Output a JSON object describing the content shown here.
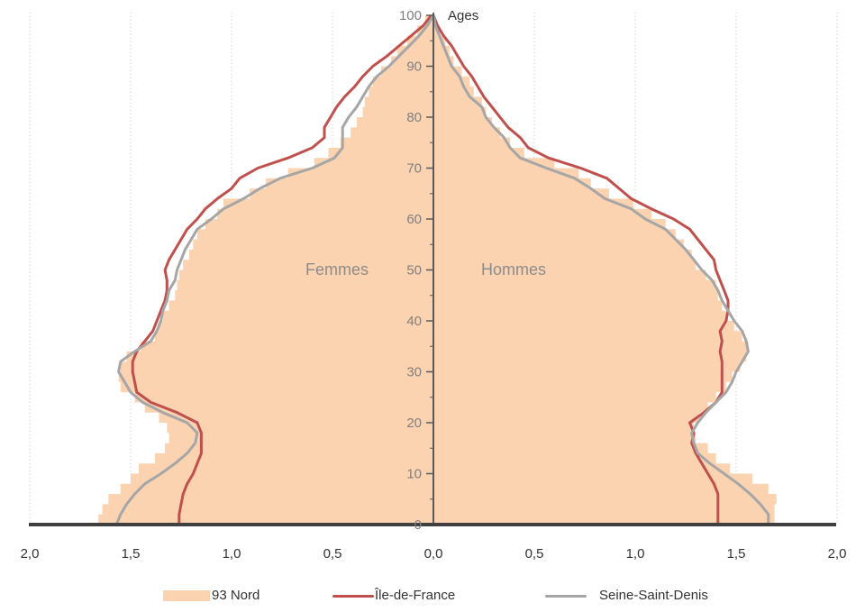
{
  "chart_data": {
    "type": "population_pyramid",
    "title": "",
    "ylabel": "Ages",
    "y_ticks": [
      0,
      10,
      20,
      30,
      40,
      50,
      60,
      70,
      80,
      90,
      100
    ],
    "x_ticks": [
      2.0,
      1.5,
      1.0,
      0.5,
      0.0,
      0.5,
      1.0,
      1.5,
      2.0
    ],
    "x_tick_labels": [
      "2,0",
      "1,5",
      "1,0",
      "0,5",
      "0,0",
      "0,5",
      "1,0",
      "1,5",
      "2,0"
    ],
    "xlim": [
      -2.0,
      2.0
    ],
    "ylim": [
      0,
      100
    ],
    "left_label": "Femmes",
    "right_label": "Hommes",
    "grid": "vertical-dotted",
    "legend_position": "bottom",
    "ages": [
      0,
      2,
      4,
      6,
      8,
      10,
      12,
      14,
      16,
      18,
      20,
      22,
      24,
      26,
      28,
      30,
      32,
      34,
      36,
      38,
      40,
      42,
      44,
      46,
      48,
      50,
      52,
      54,
      56,
      58,
      60,
      62,
      64,
      66,
      68,
      70,
      72,
      74,
      76,
      78,
      80,
      82,
      84,
      86,
      88,
      90,
      92,
      94,
      96,
      98,
      100
    ],
    "series": [
      {
        "name": "93 Nord",
        "style": "area",
        "color": "#fbd3b1",
        "femmes": [
          1.66,
          1.64,
          1.61,
          1.55,
          1.5,
          1.46,
          1.38,
          1.33,
          1.31,
          1.32,
          1.36,
          1.43,
          1.48,
          1.55,
          1.56,
          1.55,
          1.52,
          1.45,
          1.38,
          1.36,
          1.34,
          1.31,
          1.28,
          1.27,
          1.26,
          1.24,
          1.21,
          1.19,
          1.17,
          1.13,
          1.07,
          1.04,
          0.91,
          0.83,
          0.72,
          0.59,
          0.52,
          0.46,
          0.41,
          0.38,
          0.35,
          0.34,
          0.32,
          0.3,
          0.26,
          0.21,
          0.18,
          0.13,
          0.08,
          0.04,
          0.01
        ],
        "hommes": [
          1.69,
          1.69,
          1.7,
          1.66,
          1.58,
          1.47,
          1.4,
          1.36,
          1.3,
          1.29,
          1.32,
          1.36,
          1.4,
          1.45,
          1.48,
          1.52,
          1.55,
          1.56,
          1.53,
          1.49,
          1.46,
          1.43,
          1.41,
          1.4,
          1.35,
          1.3,
          1.28,
          1.24,
          1.2,
          1.15,
          1.08,
          0.99,
          0.87,
          0.78,
          0.72,
          0.6,
          0.45,
          0.38,
          0.33,
          0.29,
          0.26,
          0.24,
          0.2,
          0.18,
          0.14,
          0.1,
          0.08,
          0.06,
          0.03,
          0.01,
          0.0
        ]
      },
      {
        "name": "Île-de-France",
        "style": "line",
        "color": "#c0504d",
        "femmes": [
          1.26,
          1.26,
          1.25,
          1.24,
          1.22,
          1.19,
          1.17,
          1.15,
          1.15,
          1.15,
          1.17,
          1.27,
          1.4,
          1.47,
          1.48,
          1.49,
          1.49,
          1.47,
          1.43,
          1.39,
          1.37,
          1.35,
          1.33,
          1.32,
          1.32,
          1.33,
          1.31,
          1.28,
          1.25,
          1.22,
          1.17,
          1.13,
          1.07,
          1.0,
          0.96,
          0.87,
          0.72,
          0.6,
          0.54,
          0.54,
          0.51,
          0.48,
          0.44,
          0.39,
          0.35,
          0.3,
          0.23,
          0.17,
          0.11,
          0.05,
          0.01
        ],
        "hommes": [
          1.41,
          1.41,
          1.41,
          1.41,
          1.39,
          1.36,
          1.33,
          1.3,
          1.28,
          1.29,
          1.27,
          1.34,
          1.4,
          1.43,
          1.43,
          1.43,
          1.43,
          1.42,
          1.43,
          1.42,
          1.45,
          1.46,
          1.46,
          1.44,
          1.42,
          1.4,
          1.39,
          1.35,
          1.31,
          1.27,
          1.19,
          1.08,
          0.98,
          0.92,
          0.86,
          0.73,
          0.57,
          0.47,
          0.43,
          0.37,
          0.33,
          0.29,
          0.25,
          0.22,
          0.19,
          0.15,
          0.12,
          0.09,
          0.05,
          0.02,
          0.0
        ]
      },
      {
        "name": "Seine-Saint-Denis",
        "style": "line",
        "color": "#a6a6a6",
        "femmes": [
          1.57,
          1.55,
          1.52,
          1.48,
          1.43,
          1.35,
          1.28,
          1.22,
          1.18,
          1.17,
          1.22,
          1.34,
          1.44,
          1.5,
          1.53,
          1.56,
          1.55,
          1.48,
          1.4,
          1.37,
          1.35,
          1.34,
          1.32,
          1.31,
          1.28,
          1.27,
          1.25,
          1.23,
          1.2,
          1.17,
          1.1,
          1.04,
          0.94,
          0.86,
          0.76,
          0.6,
          0.49,
          0.45,
          0.45,
          0.45,
          0.42,
          0.38,
          0.35,
          0.32,
          0.28,
          0.22,
          0.17,
          0.12,
          0.07,
          0.03,
          0.0
        ],
        "hommes": [
          1.66,
          1.66,
          1.62,
          1.57,
          1.51,
          1.44,
          1.37,
          1.31,
          1.29,
          1.28,
          1.31,
          1.35,
          1.4,
          1.45,
          1.48,
          1.5,
          1.53,
          1.56,
          1.55,
          1.53,
          1.49,
          1.46,
          1.43,
          1.41,
          1.38,
          1.33,
          1.29,
          1.25,
          1.2,
          1.15,
          1.05,
          0.98,
          0.85,
          0.78,
          0.7,
          0.56,
          0.43,
          0.38,
          0.35,
          0.3,
          0.26,
          0.24,
          0.18,
          0.15,
          0.13,
          0.09,
          0.07,
          0.05,
          0.03,
          0.01,
          0.0
        ]
      }
    ]
  },
  "legend": {
    "items": [
      {
        "label": "93 Nord",
        "color": "#fbd3b1",
        "kind": "fill"
      },
      {
        "label": "Île-de-France",
        "color": "#c0504d",
        "kind": "line"
      },
      {
        "label": "Seine-Saint-Denis",
        "color": "#a6a6a6",
        "kind": "line"
      }
    ]
  }
}
